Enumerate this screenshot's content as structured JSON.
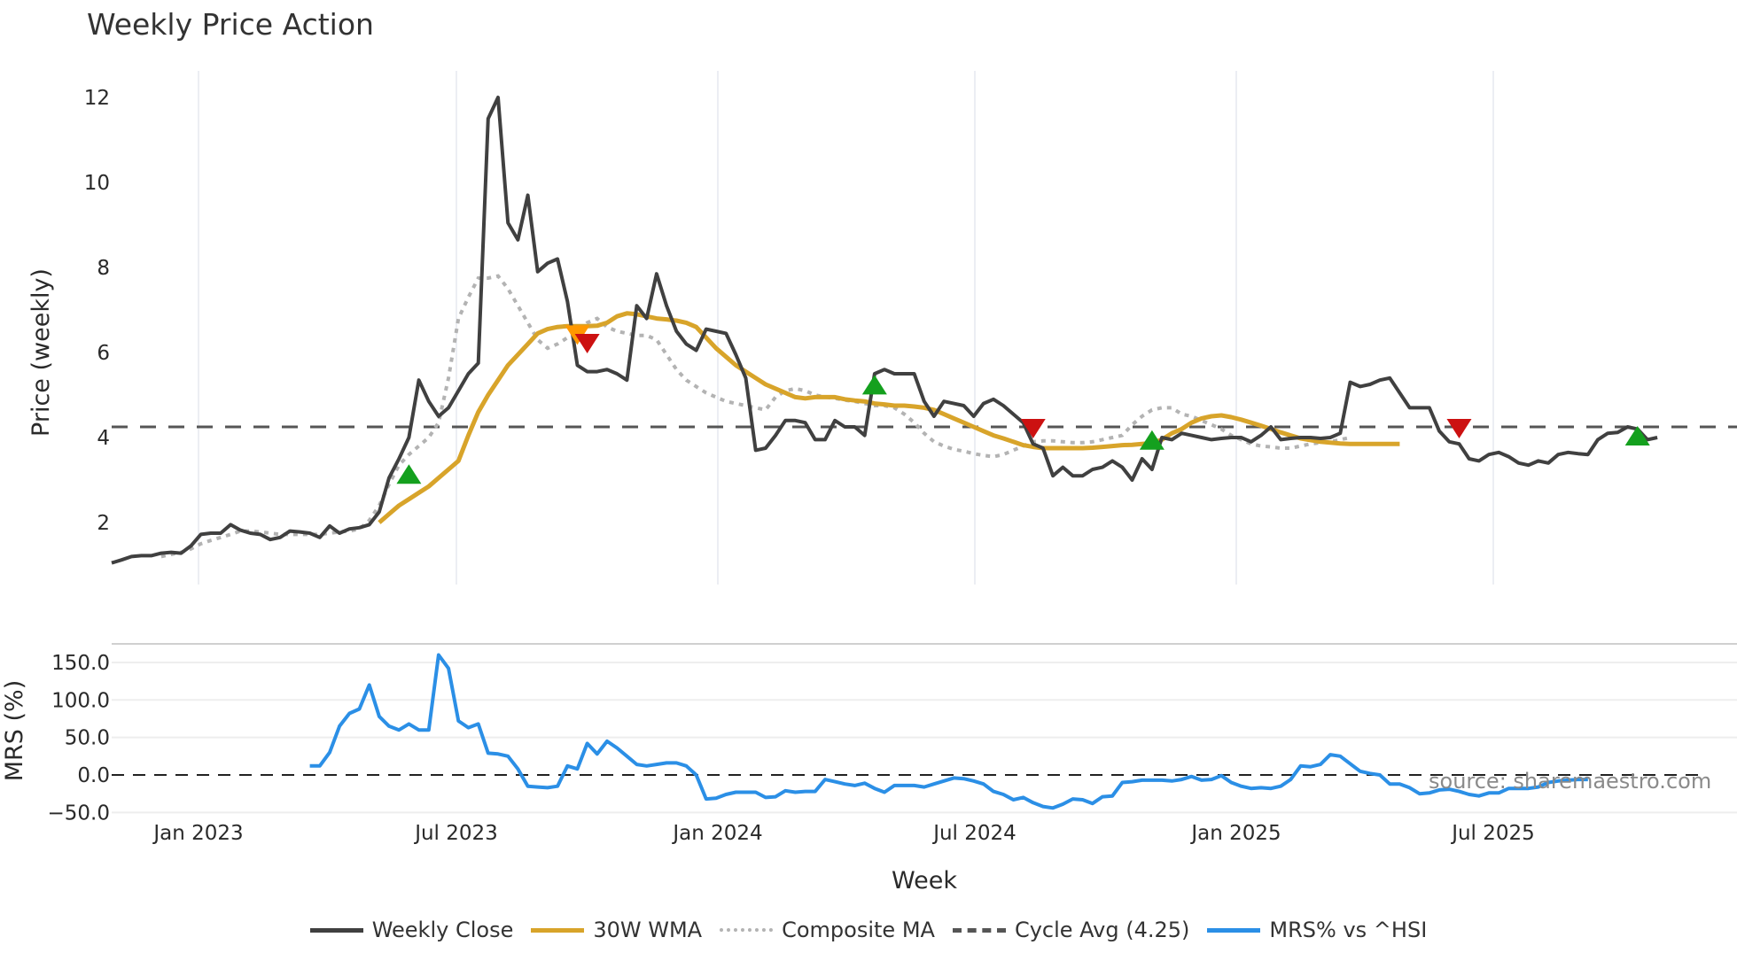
{
  "title": "Weekly Price Action",
  "source_label": "source: sharemaestro.com",
  "legend": [
    {
      "label": "Weekly Close",
      "color": "#404040",
      "style": "solid"
    },
    {
      "label": "30W WMA",
      "color": "#d8a42a",
      "style": "solid"
    },
    {
      "label": "Composite MA",
      "color": "#b3b3b3",
      "style": "dotted"
    },
    {
      "label": "Cycle Avg (4.25)",
      "color": "#555555",
      "style": "dashed"
    },
    {
      "label": "MRS% vs ^HSI",
      "color": "#2b8fe6",
      "style": "solid"
    }
  ],
  "chart_data": [
    {
      "type": "line",
      "title": "Weekly Price Action",
      "xlabel": "Week",
      "ylabel": "Price (weekly)",
      "y_ticks": [
        "2",
        "4",
        "6",
        "8",
        "10",
        "12"
      ],
      "x_ticks": [
        "Jan 2023",
        "Jul 2023",
        "Jan 2024",
        "Jul 2024",
        "Jan 2025",
        "Jul 2025"
      ],
      "ylim": [
        0.9,
        12.6
      ],
      "grid": "vertical",
      "reference_line": {
        "label": "Cycle Avg (4.25)",
        "value": 4.25
      },
      "series": [
        {
          "name": "Weekly Close",
          "values": [
            1.05,
            1.12,
            1.2,
            1.22,
            1.22,
            1.28,
            1.3,
            1.28,
            1.45,
            1.72,
            1.75,
            1.75,
            1.95,
            1.82,
            1.75,
            1.72,
            1.6,
            1.65,
            1.8,
            1.78,
            1.75,
            1.65,
            1.92,
            1.75,
            1.85,
            1.88,
            1.95,
            2.25,
            3.05,
            3.5,
            4.0,
            5.35,
            4.85,
            4.5,
            4.7,
            5.1,
            5.5,
            5.75,
            11.5,
            12.0,
            9.05,
            8.65,
            9.7,
            7.9,
            8.1,
            8.2,
            7.2,
            5.7,
            5.55,
            5.55,
            5.6,
            5.5,
            5.35,
            7.1,
            6.8,
            7.85,
            7.1,
            6.5,
            6.2,
            6.05,
            6.55,
            6.5,
            6.45,
            5.95,
            5.4,
            3.7,
            3.75,
            4.05,
            4.4,
            4.4,
            4.35,
            3.95,
            3.95,
            4.4,
            4.25,
            4.25,
            4.05,
            5.5,
            5.6,
            5.5,
            5.5,
            5.5,
            4.85,
            4.5,
            4.85,
            4.8,
            4.75,
            4.5,
            4.8,
            4.9,
            4.75,
            4.55,
            4.35,
            3.85,
            3.75,
            3.1,
            3.3,
            3.1,
            3.1,
            3.25,
            3.3,
            3.45,
            3.3,
            3.0,
            3.5,
            3.25,
            4.0,
            3.95,
            4.1,
            4.05,
            4.0,
            3.95,
            3.98,
            4.0,
            4.0,
            3.9,
            4.05,
            4.25,
            3.95,
            3.98,
            4.0,
            4.0,
            3.98,
            4.0,
            4.1,
            5.3,
            5.2,
            5.25,
            5.35,
            5.4,
            5.05,
            4.7,
            4.7,
            4.7,
            4.15,
            3.9,
            3.85,
            3.5,
            3.45,
            3.6,
            3.65,
            3.55,
            3.4,
            3.35,
            3.45,
            3.4,
            3.6,
            3.65,
            3.62,
            3.6,
            3.95,
            4.1,
            4.12,
            4.25,
            4.2,
            3.95,
            4.0
          ]
        },
        {
          "name": "30W WMA",
          "start_index": 27,
          "values": [
            2.0,
            2.2,
            2.4,
            2.55,
            2.7,
            2.85,
            3.05,
            3.25,
            3.45,
            4.05,
            4.6,
            5.0,
            5.35,
            5.7,
            5.95,
            6.2,
            6.45,
            6.55,
            6.6,
            6.62,
            6.62,
            6.62,
            6.63,
            6.7,
            6.85,
            6.92,
            6.9,
            6.85,
            6.8,
            6.78,
            6.75,
            6.7,
            6.6,
            6.35,
            6.1,
            5.9,
            5.7,
            5.55,
            5.4,
            5.25,
            5.15,
            5.05,
            4.95,
            4.92,
            4.95,
            4.95,
            4.95,
            4.9,
            4.87,
            4.85,
            4.8,
            4.78,
            4.75,
            4.75,
            4.73,
            4.7,
            4.65,
            4.55,
            4.45,
            4.35,
            4.25,
            4.15,
            4.05,
            3.98,
            3.9,
            3.82,
            3.78,
            3.75,
            3.75,
            3.75,
            3.75,
            3.75,
            3.76,
            3.78,
            3.8,
            3.82,
            3.83,
            3.85,
            3.87,
            3.95,
            4.1,
            4.2,
            4.35,
            4.45,
            4.5,
            4.52,
            4.48,
            4.42,
            4.35,
            4.28,
            4.2,
            4.12,
            4.05,
            3.98,
            3.94,
            3.9,
            3.88,
            3.86,
            3.85,
            3.85,
            3.85,
            3.85,
            3.85,
            3.85
          ]
        },
        {
          "name": "Composite MA",
          "start_index": 5,
          "values": [
            1.2,
            1.25,
            1.3,
            1.38,
            1.5,
            1.58,
            1.65,
            1.72,
            1.8,
            1.8,
            1.78,
            1.75,
            1.72,
            1.72,
            1.72,
            1.72,
            1.72,
            1.75,
            1.78,
            1.8,
            1.85,
            2.05,
            2.4,
            2.9,
            3.35,
            3.6,
            3.8,
            4.0,
            4.35,
            5.4,
            6.8,
            7.3,
            7.75,
            7.75,
            7.8,
            7.5,
            7.1,
            6.7,
            6.3,
            6.1,
            6.2,
            6.35,
            6.5,
            6.7,
            6.8,
            6.6,
            6.5,
            6.45,
            6.4,
            6.4,
            6.3,
            5.95,
            5.6,
            5.35,
            5.2,
            5.05,
            4.95,
            4.85,
            4.8,
            4.75,
            4.7,
            4.65,
            4.95,
            5.1,
            5.15,
            5.1,
            5.0,
            4.95,
            4.92,
            4.88,
            4.85,
            4.8,
            4.75,
            4.75,
            4.7,
            4.55,
            4.35,
            4.1,
            3.9,
            3.8,
            3.72,
            3.68,
            3.62,
            3.58,
            3.55,
            3.6,
            3.7,
            3.8,
            3.9,
            3.92,
            3.92,
            3.9,
            3.88,
            3.88,
            3.9,
            3.95,
            4.0,
            4.05,
            4.3,
            4.5,
            4.65,
            4.7,
            4.7,
            4.55,
            4.5,
            4.4,
            4.3,
            4.2,
            4.05,
            3.95,
            3.85,
            3.8,
            3.78,
            3.75,
            3.75,
            3.8,
            3.85,
            3.88,
            3.9,
            3.95,
            4.0
          ]
        }
      ],
      "markers": [
        {
          "type": "buy",
          "shape": "triangle-up",
          "color": "#14a01e",
          "week_index": 30,
          "value": 3.1
        },
        {
          "type": "warn",
          "shape": "triangle-down",
          "color": "#ff9800",
          "week_index": 47,
          "value": 6.45
        },
        {
          "type": "sell",
          "shape": "triangle-down",
          "color": "#cc1111",
          "week_index": 48,
          "value": 6.25
        },
        {
          "type": "buy",
          "shape": "triangle-up",
          "color": "#14a01e",
          "week_index": 77,
          "value": 5.2
        },
        {
          "type": "sell",
          "shape": "triangle-down",
          "color": "#cc1111",
          "week_index": 93,
          "value": 4.25
        },
        {
          "type": "buy",
          "shape": "triangle-up",
          "color": "#14a01e",
          "week_index": 105,
          "value": 3.9
        },
        {
          "type": "sell",
          "shape": "triangle-down",
          "color": "#cc1111",
          "week_index": 136,
          "value": 4.25
        },
        {
          "type": "buy",
          "shape": "triangle-up",
          "color": "#14a01e",
          "week_index": 154,
          "value": 4.0
        }
      ]
    },
    {
      "type": "line",
      "xlabel": "Week",
      "ylabel": "MRS (%)",
      "y_ticks": [
        "−50.0",
        "0.0",
        "50.0",
        "100.0",
        "150.0"
      ],
      "x_ticks": [
        "Jan 2023",
        "Jul 2023",
        "Jan 2024",
        "Jul 2024",
        "Jan 2025",
        "Jul 2025"
      ],
      "ylim": [
        -60,
        165
      ],
      "reference_line": {
        "value": 0
      },
      "series": [
        {
          "name": "MRS% vs ^HSI",
          "start_index": 20,
          "values": [
            12,
            12,
            30,
            65,
            82,
            88,
            120,
            78,
            65,
            60,
            68,
            60,
            60,
            160,
            142,
            72,
            63,
            68,
            29,
            28,
            25,
            8,
            -15,
            -16,
            -17,
            -15,
            12,
            8,
            42,
            28,
            45,
            36,
            25,
            14,
            12,
            14,
            16,
            16,
            12,
            0,
            -32,
            -31,
            -26,
            -23,
            -23,
            -23,
            -30,
            -29,
            -21,
            -23,
            -22,
            -22,
            -6,
            -9,
            -12,
            -14,
            -11,
            -18,
            -23,
            -14,
            -14,
            -14,
            -16,
            -12,
            -8,
            -4,
            -5,
            -8,
            -12,
            -22,
            -26,
            -33,
            -30,
            -37,
            -42,
            -44,
            -39,
            -32,
            -33,
            -38,
            -29,
            -28,
            -10,
            -9,
            -7,
            -7,
            -7,
            -8,
            -6,
            -2,
            -7,
            -6,
            -1,
            -10,
            -15,
            -18,
            -17,
            -18,
            -15,
            -6,
            12,
            11,
            14,
            27,
            25,
            15,
            5,
            2,
            0,
            -12,
            -12,
            -17,
            -25,
            -24,
            -20,
            -19,
            -22,
            -26,
            -28,
            -24,
            -24,
            -18,
            -18,
            -18,
            -16,
            -10,
            -8,
            -7,
            -6,
            -6
          ]
        }
      ]
    }
  ]
}
